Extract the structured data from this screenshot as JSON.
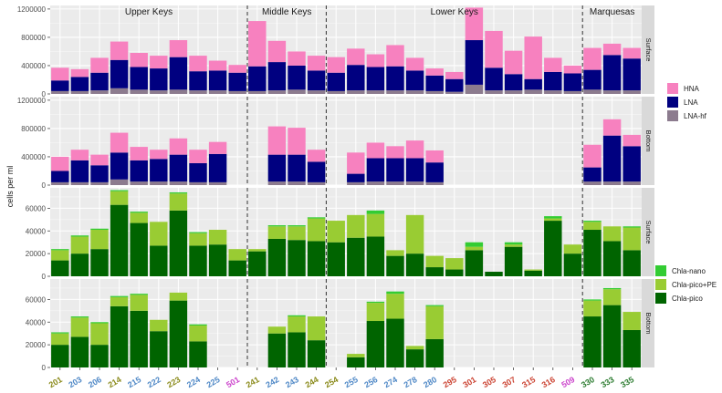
{
  "chart_data": {
    "type": "bar",
    "stacked": true,
    "ylabel": "cells per ml",
    "regions": [
      "Upper Keys",
      "Middle Keys",
      "Lower Keys",
      "Marquesas"
    ],
    "region_dividers_after": [
      "501",
      "244",
      "509"
    ],
    "stations": [
      {
        "label": "201",
        "color": "#8a8a1a"
      },
      {
        "label": "203",
        "color": "#4f88c6"
      },
      {
        "label": "206",
        "color": "#4f88c6"
      },
      {
        "label": "214",
        "color": "#8a8a1a"
      },
      {
        "label": "215",
        "color": "#4f88c6"
      },
      {
        "label": "222",
        "color": "#4f88c6"
      },
      {
        "label": "223",
        "color": "#8a8a1a"
      },
      {
        "label": "224",
        "color": "#4f88c6"
      },
      {
        "label": "225",
        "color": "#4f88c6"
      },
      {
        "label": "501",
        "color": "#cc44cc"
      },
      {
        "label": "241",
        "color": "#8a8a1a"
      },
      {
        "label": "242",
        "color": "#4f88c6"
      },
      {
        "label": "243",
        "color": "#4f88c6"
      },
      {
        "label": "244",
        "color": "#8a8a1a"
      },
      {
        "label": "254",
        "color": "#8a8a1a"
      },
      {
        "label": "255",
        "color": "#4f88c6"
      },
      {
        "label": "256",
        "color": "#4f88c6"
      },
      {
        "label": "274",
        "color": "#4f88c6"
      },
      {
        "label": "278",
        "color": "#4f88c6"
      },
      {
        "label": "280",
        "color": "#4f88c6"
      },
      {
        "label": "295",
        "color": "#cc4433"
      },
      {
        "label": "301",
        "color": "#cc4433"
      },
      {
        "label": "305",
        "color": "#cc4433"
      },
      {
        "label": "307",
        "color": "#cc4433"
      },
      {
        "label": "315",
        "color": "#cc4433"
      },
      {
        "label": "316",
        "color": "#cc4433"
      },
      {
        "label": "509",
        "color": "#cc44cc"
      },
      {
        "label": "330",
        "color": "#2e7d32"
      },
      {
        "label": "333",
        "color": "#2e7d32"
      },
      {
        "label": "335",
        "color": "#2e7d32"
      }
    ],
    "legends": [
      {
        "name": "bacteria-legend",
        "items": [
          {
            "label": "HNA",
            "color": "#f781bf"
          },
          {
            "label": "LNA",
            "color": "#000080"
          },
          {
            "label": "LNA-hf",
            "color": "#8c7b8e"
          }
        ]
      },
      {
        "name": "chla-legend",
        "items": [
          {
            "label": "Chla-nano",
            "color": "#33cc33"
          },
          {
            "label": "Chla-pico+PE",
            "color": "#99cc33"
          },
          {
            "label": "Chla-pico",
            "color": "#006400"
          }
        ]
      }
    ],
    "panels": [
      {
        "name": "bacteria-surface",
        "strip": "Surface",
        "ylim": [
          0,
          1250000
        ],
        "yticks": [
          0,
          400000,
          800000,
          1200000
        ],
        "ytick_labels": [
          "0",
          "400000",
          "800000",
          "1200000"
        ],
        "series_order": [
          "LNA-hf",
          "LNA",
          "HNA"
        ],
        "series": [
          {
            "name": "LNA-hf",
            "color": "#8c7b8e",
            "values": [
              40000,
              40000,
              50000,
              80000,
              60000,
              50000,
              60000,
              50000,
              50000,
              40000,
              40000,
              50000,
              60000,
              50000,
              40000,
              50000,
              50000,
              50000,
              50000,
              40000,
              30000,
              130000,
              50000,
              50000,
              60000,
              50000,
              40000,
              60000,
              50000,
              50000
            ]
          },
          {
            "name": "LNA",
            "color": "#000080",
            "values": [
              150000,
              200000,
              250000,
              400000,
              320000,
              310000,
              460000,
              270000,
              280000,
              260000,
              350000,
              400000,
              340000,
              280000,
              260000,
              360000,
              330000,
              340000,
              280000,
              220000,
              180000,
              630000,
              320000,
              230000,
              150000,
              260000,
              250000,
              280000,
              500000,
              450000
            ]
          },
          {
            "name": "HNA",
            "color": "#f781bf",
            "values": [
              180000,
              110000,
              210000,
              260000,
              200000,
              180000,
              240000,
              220000,
              140000,
              110000,
              640000,
              300000,
              200000,
              210000,
              220000,
              230000,
              180000,
              300000,
              180000,
              100000,
              100000,
              460000,
              520000,
              330000,
              600000,
              200000,
              110000,
              310000,
              160000,
              150000
            ]
          }
        ]
      },
      {
        "name": "bacteria-bottom",
        "strip": "Bottom",
        "ylim": [
          0,
          1250000
        ],
        "yticks": [
          0,
          400000,
          800000,
          1200000
        ],
        "ytick_labels": [
          "0",
          "400000",
          "800000",
          "1200000"
        ],
        "series_order": [
          "LNA-hf",
          "LNA",
          "HNA"
        ],
        "series": [
          {
            "name": "LNA-hf",
            "color": "#8c7b8e",
            "values": [
              40000,
              40000,
              40000,
              80000,
              50000,
              50000,
              50000,
              40000,
              40000,
              null,
              null,
              50000,
              50000,
              40000,
              null,
              40000,
              50000,
              50000,
              50000,
              40000,
              null,
              null,
              null,
              null,
              null,
              null,
              null,
              50000,
              50000,
              50000
            ]
          },
          {
            "name": "LNA",
            "color": "#000080",
            "values": [
              160000,
              310000,
              240000,
              380000,
              300000,
              320000,
              380000,
              270000,
              400000,
              null,
              null,
              380000,
              380000,
              290000,
              null,
              120000,
              330000,
              330000,
              330000,
              280000,
              null,
              null,
              null,
              null,
              null,
              null,
              null,
              200000,
              650000,
              500000
            ]
          },
          {
            "name": "HNA",
            "color": "#f781bf",
            "values": [
              200000,
              150000,
              150000,
              280000,
              190000,
              130000,
              230000,
              190000,
              170000,
              null,
              null,
              400000,
              380000,
              170000,
              null,
              300000,
              220000,
              170000,
              250000,
              170000,
              null,
              null,
              null,
              null,
              null,
              null,
              null,
              320000,
              230000,
              160000
            ]
          }
        ]
      },
      {
        "name": "chla-surface",
        "strip": "Surface",
        "ylim": [
          0,
          78000
        ],
        "yticks": [
          0,
          20000,
          40000,
          60000
        ],
        "ytick_labels": [
          "0",
          "20000",
          "40000",
          "60000"
        ],
        "series_order": [
          "Chla-pico",
          "Chla-pico+PE",
          "Chla-nano"
        ],
        "series": [
          {
            "name": "Chla-pico",
            "color": "#006400",
            "values": [
              14000,
              20000,
              24000,
              63000,
              47000,
              27000,
              58000,
              27000,
              28000,
              14000,
              22000,
              33000,
              32000,
              31000,
              30000,
              34000,
              35000,
              18000,
              20000,
              8000,
              6000,
              23000,
              4000,
              26000,
              5000,
              49000,
              20000,
              41000,
              31000,
              23000
            ]
          },
          {
            "name": "Chla-pico+PE",
            "color": "#99cc33",
            "values": [
              9000,
              15000,
              17000,
              12000,
              9000,
              21000,
              15000,
              11000,
              13000,
              10000,
              2000,
              11000,
              12000,
              20000,
              19000,
              20000,
              20000,
              5000,
              34000,
              10000,
              10000,
              3000,
              0,
              2000,
              1000,
              2000,
              8000,
              7000,
              13000,
              20000
            ]
          },
          {
            "name": "Chla-nano",
            "color": "#33cc33",
            "values": [
              1000,
              1000,
              1000,
              1000,
              1000,
              0,
              1000,
              1000,
              0,
              0,
              0,
              1000,
              1000,
              1000,
              0,
              0,
              3000,
              0,
              0,
              0,
              0,
              4000,
              0,
              2000,
              0,
              2000,
              0,
              1000,
              0,
              1000
            ]
          }
        ]
      },
      {
        "name": "chla-bottom",
        "strip": "Bottom",
        "ylim": [
          0,
          78000
        ],
        "yticks": [
          0,
          20000,
          40000,
          60000
        ],
        "ytick_labels": [
          "0",
          "20000",
          "40000",
          "60000"
        ],
        "series_order": [
          "Chla-pico",
          "Chla-pico+PE",
          "Chla-nano"
        ],
        "series": [
          {
            "name": "Chla-pico",
            "color": "#006400",
            "values": [
              20000,
              27000,
              20000,
              54000,
              50000,
              32000,
              59000,
              23000,
              null,
              null,
              null,
              30000,
              31000,
              24000,
              null,
              9000,
              41000,
              43000,
              16000,
              25000,
              null,
              null,
              null,
              null,
              null,
              null,
              null,
              45000,
              55000,
              33000
            ]
          },
          {
            "name": "Chla-pico+PE",
            "color": "#99cc33",
            "values": [
              10000,
              17000,
              19000,
              8000,
              14000,
              10000,
              7000,
              14000,
              null,
              null,
              null,
              6000,
              14000,
              21000,
              null,
              3000,
              16000,
              22000,
              3000,
              29000,
              null,
              null,
              null,
              null,
              null,
              null,
              null,
              14000,
              14000,
              16000
            ]
          },
          {
            "name": "Chla-nano",
            "color": "#33cc33",
            "values": [
              1000,
              1000,
              1000,
              1000,
              1000,
              0,
              0,
              1000,
              null,
              null,
              null,
              0,
              1000,
              0,
              null,
              0,
              1000,
              2000,
              0,
              1000,
              null,
              null,
              null,
              null,
              null,
              null,
              null,
              1000,
              1000,
              0
            ]
          }
        ]
      }
    ]
  }
}
